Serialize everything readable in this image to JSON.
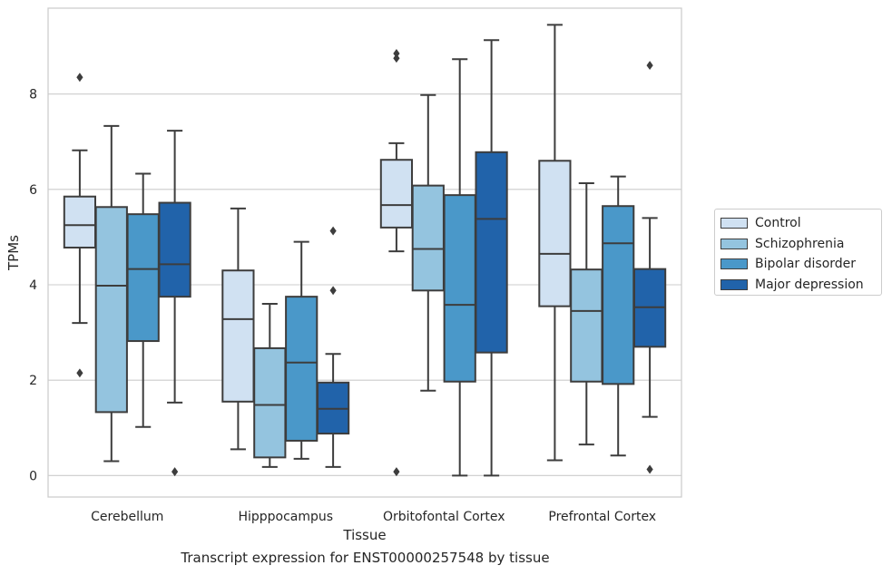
{
  "chart_data": {
    "type": "box",
    "title": "",
    "caption": "Transcript expression for ENST00000257548 by tissue",
    "xlabel": "Tissue",
    "ylabel": "TPMs",
    "ylim": [
      -0.45,
      9.8
    ],
    "yticks": [
      0,
      2,
      4,
      6,
      8
    ],
    "grid": true,
    "legend_position": "right",
    "categories": [
      "Cerebellum",
      "Hipppocampus",
      "Orbitofontal Cortex",
      "Prefrontal Cortex"
    ],
    "series": [
      {
        "name": "Control",
        "color": "#d0e1f2",
        "boxes": [
          {
            "whisker_low": 3.2,
            "q1": 4.78,
            "median": 5.25,
            "q3": 5.85,
            "whisker_high": 6.82,
            "outliers": [
              8.35,
              2.15
            ]
          },
          {
            "whisker_low": 0.55,
            "q1": 1.55,
            "median": 3.28,
            "q3": 4.3,
            "whisker_high": 5.6,
            "outliers": []
          },
          {
            "whisker_low": 4.7,
            "q1": 5.2,
            "median": 5.67,
            "q3": 6.62,
            "whisker_high": 6.97,
            "outliers": [
              8.85,
              8.75,
              0.08
            ]
          },
          {
            "whisker_low": 0.32,
            "q1": 3.55,
            "median": 4.65,
            "q3": 6.6,
            "whisker_high": 9.45,
            "outliers": []
          }
        ]
      },
      {
        "name": "Schizophrenia",
        "color": "#94c4df",
        "boxes": [
          {
            "whisker_low": 0.3,
            "q1": 1.33,
            "median": 3.98,
            "q3": 5.63,
            "whisker_high": 7.33,
            "outliers": []
          },
          {
            "whisker_low": 0.18,
            "q1": 0.38,
            "median": 1.48,
            "q3": 2.67,
            "whisker_high": 3.6,
            "outliers": []
          },
          {
            "whisker_low": 1.78,
            "q1": 3.88,
            "median": 4.75,
            "q3": 6.08,
            "whisker_high": 7.98,
            "outliers": []
          },
          {
            "whisker_low": 0.65,
            "q1": 1.97,
            "median": 3.45,
            "q3": 4.32,
            "whisker_high": 6.13,
            "outliers": []
          }
        ]
      },
      {
        "name": "Bipolar disorder",
        "color": "#4a98c9",
        "boxes": [
          {
            "whisker_low": 1.02,
            "q1": 2.82,
            "median": 4.33,
            "q3": 5.48,
            "whisker_high": 6.33,
            "outliers": []
          },
          {
            "whisker_low": 0.35,
            "q1": 0.73,
            "median": 2.37,
            "q3": 3.75,
            "whisker_high": 4.9,
            "outliers": []
          },
          {
            "whisker_low": 0.0,
            "q1": 1.97,
            "median": 3.58,
            "q3": 5.88,
            "whisker_high": 8.73,
            "outliers": []
          },
          {
            "whisker_low": 0.42,
            "q1": 1.92,
            "median": 4.87,
            "q3": 5.65,
            "whisker_high": 6.27,
            "outliers": []
          }
        ]
      },
      {
        "name": "Major depression",
        "color": "#2163aa",
        "boxes": [
          {
            "whisker_low": 1.53,
            "q1": 3.75,
            "median": 4.43,
            "q3": 5.72,
            "whisker_high": 7.23,
            "outliers": [
              0.08
            ]
          },
          {
            "whisker_low": 0.18,
            "q1": 0.88,
            "median": 1.4,
            "q3": 1.95,
            "whisker_high": 2.55,
            "outliers": [
              5.13,
              3.88
            ]
          },
          {
            "whisker_low": 0.0,
            "q1": 2.58,
            "median": 5.38,
            "q3": 6.78,
            "whisker_high": 9.13,
            "outliers": []
          },
          {
            "whisker_low": 1.23,
            "q1": 2.7,
            "median": 3.53,
            "q3": 4.33,
            "whisker_high": 5.4,
            "outliers": [
              8.6,
              0.13
            ]
          }
        ]
      }
    ]
  }
}
